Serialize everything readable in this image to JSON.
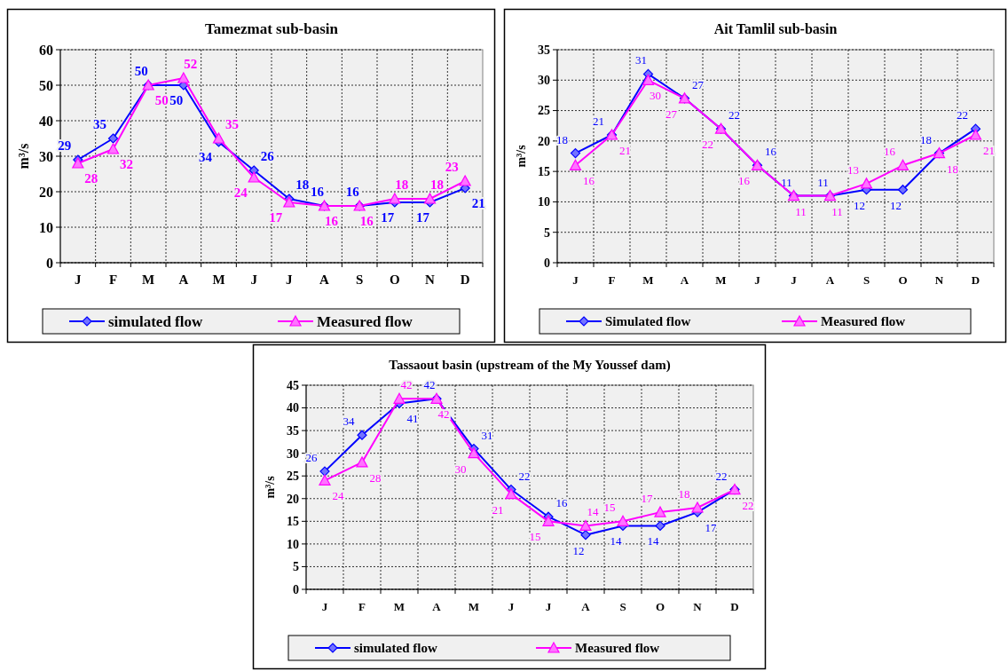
{
  "chart_data": [
    {
      "type": "line",
      "title": "Tamezmat sub-basin",
      "ylabel": "m³/s",
      "categories": [
        "J",
        "F",
        "M",
        "A",
        "M",
        "J",
        "J",
        "A",
        "S",
        "O",
        "N",
        "D"
      ],
      "series": [
        {
          "name": "simulated flow",
          "color": "#0000ff",
          "marker": "diamond",
          "values": [
            29,
            35,
            50,
            50,
            34,
            26,
            18,
            16,
            16,
            17,
            17,
            21
          ]
        },
        {
          "name": "Measured flow",
          "color": "#ff00ff",
          "marker": "triangle",
          "values": [
            28,
            32,
            50,
            52,
            35,
            24,
            17,
            16,
            16,
            18,
            18,
            23
          ]
        }
      ],
      "ylim": [
        0,
        60
      ],
      "yticks": [
        0,
        10,
        20,
        30,
        40,
        50,
        60
      ],
      "grid": true,
      "legend": "bottom",
      "data_labels": true
    },
    {
      "type": "line",
      "title": "Ait Tamlil sub-basin",
      "ylabel": "m³/s",
      "categories": [
        "J",
        "F",
        "M",
        "A",
        "M",
        "J",
        "J",
        "A",
        "S",
        "O",
        "N",
        "D"
      ],
      "series": [
        {
          "name": "Simulated flow",
          "color": "#0000ff",
          "marker": "diamond",
          "values": [
            18,
            21,
            31,
            27,
            22,
            16,
            11,
            11,
            12,
            12,
            18,
            22
          ]
        },
        {
          "name": "Measured flow",
          "color": "#ff00ff",
          "marker": "triangle",
          "values": [
            16,
            21,
            30,
            27,
            22,
            16,
            11,
            11,
            13,
            16,
            18,
            21
          ]
        }
      ],
      "ylim": [
        0,
        35
      ],
      "yticks": [
        0,
        5,
        10,
        15,
        20,
        25,
        30,
        35
      ],
      "grid": true,
      "legend": "bottom",
      "data_labels": true
    },
    {
      "type": "line",
      "title": "Tassaout basin (upstream of the My Youssef dam)",
      "ylabel": "m³/s",
      "categories": [
        "J",
        "F",
        "M",
        "A",
        "M",
        "J",
        "J",
        "A",
        "S",
        "O",
        "N",
        "D"
      ],
      "series": [
        {
          "name": "simulated flow",
          "color": "#0000ff",
          "marker": "diamond",
          "values": [
            26,
            34,
            41,
            42,
            31,
            22,
            16,
            12,
            14,
            14,
            17,
            22
          ]
        },
        {
          "name": "Measured flow",
          "color": "#ff00ff",
          "marker": "triangle",
          "values": [
            24,
            28,
            42,
            42,
            30,
            21,
            15,
            14,
            15,
            17,
            18,
            22
          ]
        }
      ],
      "ylim": [
        0,
        45
      ],
      "yticks": [
        0,
        5,
        10,
        15,
        20,
        25,
        30,
        35,
        40,
        45
      ],
      "grid": true,
      "legend": "bottom",
      "data_labels": true
    }
  ]
}
